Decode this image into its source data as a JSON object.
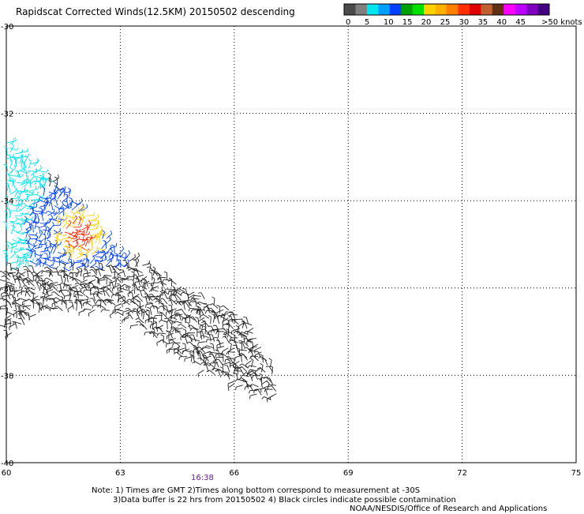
{
  "title": "Rapidscat Corrected Winds(12.5KM) 20150502 descending",
  "colorbar": {
    "labels": [
      "0",
      "5",
      "10",
      "15",
      "20",
      "25",
      "30",
      "35",
      "40",
      "45",
      ">50 knots"
    ],
    "colors": [
      "#4a4a4a",
      "#7f7f7f",
      "#00e5ee",
      "#00a0ff",
      "#0040ff",
      "#00a000",
      "#00e000",
      "#ffd000",
      "#ffb000",
      "#ff8000",
      "#ff3000",
      "#e00000",
      "#c06030",
      "#603010",
      "#ff00ff",
      "#c000ff",
      "#8000c0",
      "#400080"
    ]
  },
  "time_label": "16:38",
  "notes": {
    "line1": "Note: 1) Times are GMT 2)Times along bottom correspond to measurement at -30S",
    "line2": "3)Data buffer is 22 hrs from 20150502 4) Black circles indicate possible contamination",
    "line3": "NOAA/NESDIS/Office of Research and Applications"
  },
  "chart_data": {
    "type": "wind_barbs",
    "title": "Rapidscat Corrected Winds(12.5KM) 20150502 descending",
    "x_ticks": [
      "60",
      "63",
      "66",
      "69",
      "72",
      "75"
    ],
    "y_ticks": [
      "-30",
      "-32",
      "-34",
      "-36",
      "-38",
      "-40"
    ],
    "xlim": [
      60,
      75
    ],
    "ylim": [
      -40,
      -30
    ],
    "grid": true,
    "legend_placement": "top-right",
    "swath": {
      "outline_lonlat": [
        [
          60.0,
          -32.6
        ],
        [
          61.8,
          -34.0
        ],
        [
          63.0,
          -35.2
        ],
        [
          66.5,
          -36.8
        ],
        [
          67.2,
          -38.3
        ],
        [
          67.0,
          -38.6
        ],
        [
          65.0,
          -37.8
        ],
        [
          63.0,
          -36.6
        ],
        [
          61.0,
          -36.5
        ],
        [
          60.0,
          -37.2
        ]
      ],
      "speed_regions": [
        {
          "name": "0-5",
          "color": "#222222"
        },
        {
          "name": "5-10",
          "color": "#00e5ee"
        },
        {
          "name": "10-15",
          "color": "#0040ff"
        },
        {
          "name": "20-25",
          "color": "#ffd000"
        },
        {
          "name": "30-35",
          "color": "#ff2000"
        }
      ]
    }
  }
}
